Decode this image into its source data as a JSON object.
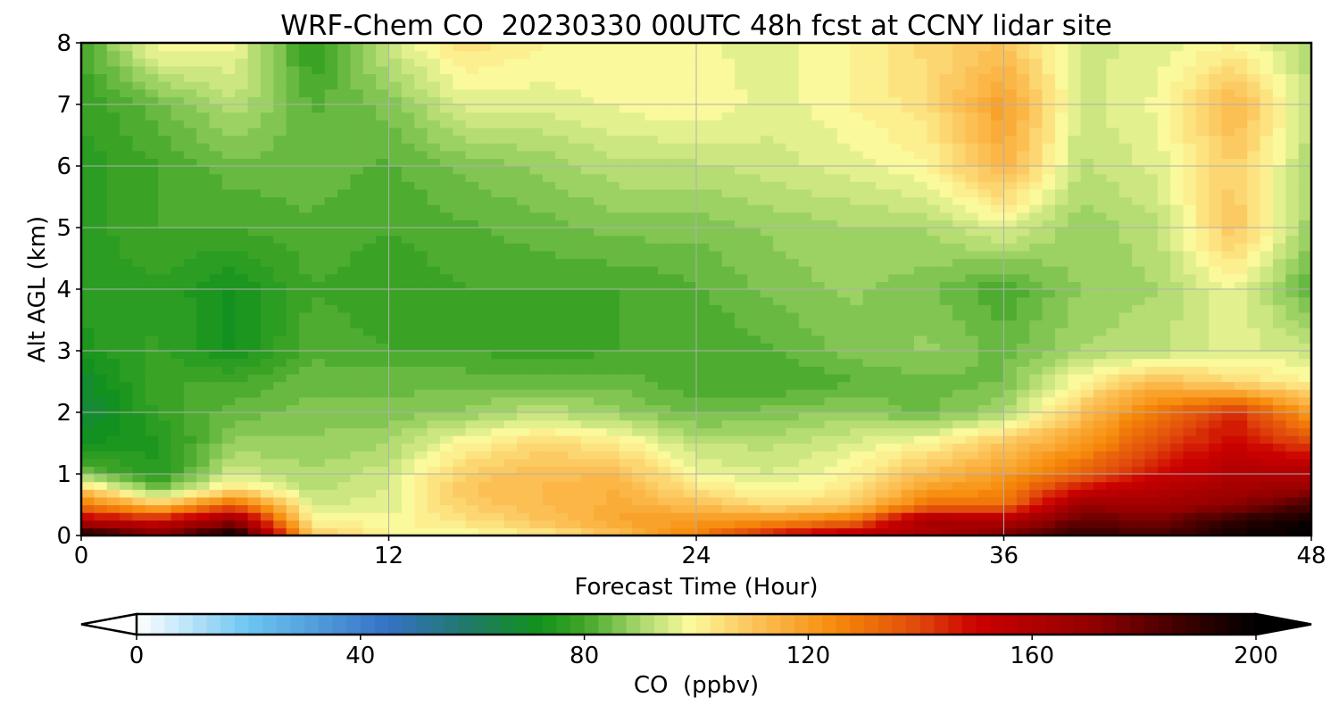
{
  "chart_data": {
    "type": "heatmap",
    "title": "WRF-Chem CO  20230330 00UTC 48h fcst at CCNY lidar site",
    "xlabel": "Forecast Time (Hour)",
    "ylabel": "Alt AGL (km)",
    "xlim": [
      0,
      48
    ],
    "ylim": [
      0,
      8
    ],
    "x_ticks": [
      0,
      12,
      24,
      36,
      48
    ],
    "y_ticks": [
      0,
      1,
      2,
      3,
      4,
      5,
      6,
      7,
      8
    ],
    "grid": true,
    "x_hours": [
      0,
      3,
      6,
      9,
      12,
      15,
      18,
      21,
      24,
      27,
      30,
      33,
      36,
      39,
      42,
      45,
      48
    ],
    "y_km": [
      0,
      0.25,
      0.5,
      0.75,
      1,
      1.5,
      2,
      2.5,
      3,
      4,
      5,
      6,
      7,
      8
    ],
    "values": [
      [
        200,
        175,
        200,
        110,
        100,
        98,
        102,
        110,
        128,
        150,
        158,
        160,
        175,
        190,
        185,
        195,
        200
      ],
      [
        155,
        150,
        170,
        100,
        98,
        104,
        110,
        118,
        120,
        122,
        130,
        165,
        160,
        180,
        175,
        190,
        198
      ],
      [
        130,
        110,
        135,
        95,
        96,
        108,
        112,
        116,
        112,
        105,
        108,
        130,
        130,
        168,
        165,
        172,
        185
      ],
      [
        110,
        85,
        105,
        92,
        95,
        110,
        113,
        115,
        104,
        98,
        102,
        120,
        125,
        150,
        158,
        165,
        170
      ],
      [
        85,
        75,
        95,
        90,
        94,
        108,
        112,
        112,
        98,
        95,
        100,
        112,
        120,
        135,
        150,
        160,
        160
      ],
      [
        72,
        74,
        88,
        88,
        90,
        100,
        106,
        102,
        92,
        92,
        95,
        100,
        110,
        120,
        140,
        150,
        140
      ],
      [
        66,
        78,
        84,
        86,
        86,
        88,
        92,
        88,
        84,
        86,
        88,
        84,
        90,
        110,
        130,
        145,
        120
      ],
      [
        68,
        80,
        80,
        84,
        84,
        84,
        84,
        84,
        80,
        80,
        82,
        84,
        85,
        100,
        112,
        105,
        100
      ],
      [
        74,
        78,
        72,
        82,
        80,
        80,
        78,
        80,
        80,
        82,
        86,
        88,
        84,
        90,
        92,
        96,
        94
      ],
      [
        76,
        77,
        72,
        80,
        78,
        80,
        80,
        80,
        82,
        86,
        88,
        86,
        80,
        88,
        90,
        98,
        82
      ],
      [
        76,
        80,
        80,
        82,
        80,
        82,
        84,
        86,
        86,
        88,
        90,
        90,
        96,
        88,
        92,
        110,
        88
      ],
      [
        76,
        80,
        84,
        84,
        82,
        86,
        88,
        92,
        92,
        94,
        96,
        100,
        114,
        92,
        96,
        108,
        90
      ],
      [
        78,
        84,
        92,
        82,
        86,
        96,
        96,
        98,
        100,
        96,
        100,
        104,
        120,
        94,
        98,
        114,
        92
      ],
      [
        80,
        100,
        98,
        76,
        94,
        104,
        100,
        100,
        98,
        96,
        100,
        106,
        110,
        94,
        96,
        100,
        90
      ]
    ],
    "colorbar": {
      "label": "CO  (ppbv)",
      "min": 0,
      "max": 200,
      "ticks": [
        0,
        40,
        80,
        120,
        160,
        200
      ],
      "extend": "both",
      "color_stops": [
        {
          "value": 0,
          "color": "#ffffff"
        },
        {
          "value": 20,
          "color": "#6cc5f2"
        },
        {
          "value": 45,
          "color": "#3472c4"
        },
        {
          "value": 60,
          "color": "#1f7a64"
        },
        {
          "value": 72,
          "color": "#11921b"
        },
        {
          "value": 80,
          "color": "#41a628"
        },
        {
          "value": 90,
          "color": "#a9d86d"
        },
        {
          "value": 99,
          "color": "#fcfa9c"
        },
        {
          "value": 110,
          "color": "#fcc45a"
        },
        {
          "value": 125,
          "color": "#f68a0a"
        },
        {
          "value": 140,
          "color": "#e0470b"
        },
        {
          "value": 150,
          "color": "#cb0000"
        },
        {
          "value": 170,
          "color": "#950000"
        },
        {
          "value": 190,
          "color": "#2e0000"
        },
        {
          "value": 200,
          "color": "#000000"
        }
      ]
    }
  }
}
